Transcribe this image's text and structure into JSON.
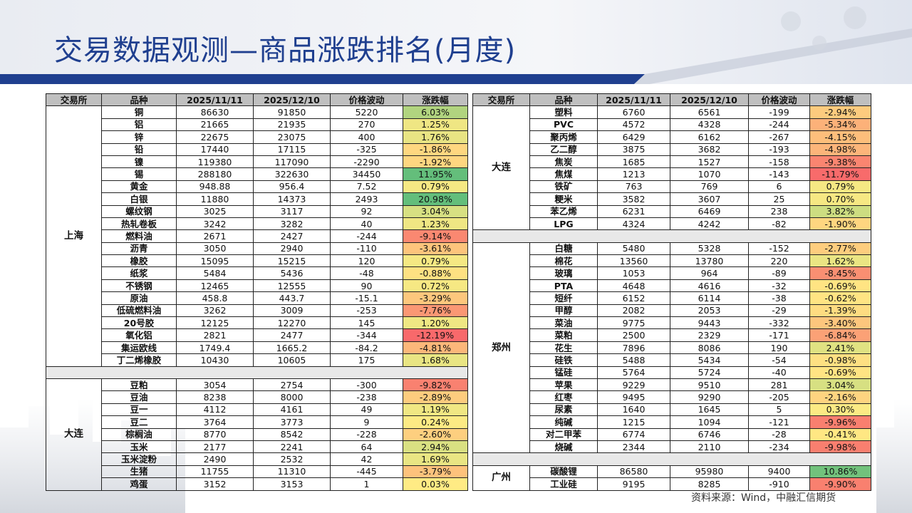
{
  "title": "交易数据观测—商品涨跌排名(月度)",
  "source": "资料来源：Wind，中融汇信期货",
  "colors": {
    "title": "#1f3f8f",
    "up": "#63be7b",
    "down": "#f8696b",
    "header": "#bfbfbf"
  },
  "headers": [
    "交易所",
    "品种",
    "2025/11/11",
    "2025/12/10",
    "价格波动",
    "涨跌幅"
  ],
  "left": {
    "groups": [
      {
        "exchange": "上海",
        "rows": [
          {
            "name": "铜",
            "p1": "86630",
            "p2": "91850",
            "diff": "5220",
            "chg": "6.03%",
            "v": 6.03
          },
          {
            "name": "铝",
            "p1": "21665",
            "p2": "21935",
            "diff": "270",
            "chg": "1.25%",
            "v": 1.25
          },
          {
            "name": "锌",
            "p1": "22675",
            "p2": "23075",
            "diff": "400",
            "chg": "1.76%",
            "v": 1.76
          },
          {
            "name": "铅",
            "p1": "17440",
            "p2": "17115",
            "diff": "-325",
            "chg": "-1.86%",
            "v": -1.86
          },
          {
            "name": "镍",
            "p1": "119380",
            "p2": "117090",
            "diff": "-2290",
            "chg": "-1.92%",
            "v": -1.92
          },
          {
            "name": "锡",
            "p1": "288180",
            "p2": "322630",
            "diff": "34450",
            "chg": "11.95%",
            "v": 11.95
          },
          {
            "name": "黄金",
            "p1": "948.88",
            "p2": "956.4",
            "diff": "7.52",
            "chg": "0.79%",
            "v": 0.79
          },
          {
            "name": "白银",
            "p1": "11880",
            "p2": "14373",
            "diff": "2493",
            "chg": "20.98%",
            "v": 20.98
          },
          {
            "name": "螺纹钢",
            "p1": "3025",
            "p2": "3117",
            "diff": "92",
            "chg": "3.04%",
            "v": 3.04
          },
          {
            "name": "热轧卷板",
            "p1": "3242",
            "p2": "3282",
            "diff": "40",
            "chg": "1.23%",
            "v": 1.23
          },
          {
            "name": "燃料油",
            "p1": "2671",
            "p2": "2427",
            "diff": "-244",
            "chg": "-9.14%",
            "v": -9.14
          },
          {
            "name": "沥青",
            "p1": "3050",
            "p2": "2940",
            "diff": "-110",
            "chg": "-3.61%",
            "v": -3.61
          },
          {
            "name": "橡胶",
            "p1": "15095",
            "p2": "15215",
            "diff": "120",
            "chg": "0.79%",
            "v": 0.79
          },
          {
            "name": "纸浆",
            "p1": "5484",
            "p2": "5436",
            "diff": "-48",
            "chg": "-0.88%",
            "v": -0.88
          },
          {
            "name": "不锈钢",
            "p1": "12465",
            "p2": "12555",
            "diff": "90",
            "chg": "0.72%",
            "v": 0.72
          },
          {
            "name": "原油",
            "p1": "458.8",
            "p2": "443.7",
            "diff": "-15.1",
            "chg": "-3.29%",
            "v": -3.29
          },
          {
            "name": "低硫燃料油",
            "p1": "3262",
            "p2": "3009",
            "diff": "-253",
            "chg": "-7.76%",
            "v": -7.76
          },
          {
            "name": "20号胶",
            "p1": "12125",
            "p2": "12270",
            "diff": "145",
            "chg": "1.20%",
            "v": 1.2
          },
          {
            "name": "氧化铝",
            "p1": "2821",
            "p2": "2477",
            "diff": "-344",
            "chg": "-12.19%",
            "v": -12.19
          },
          {
            "name": "集运欧线",
            "p1": "1749.4",
            "p2": "1665.2",
            "diff": "-84.2",
            "chg": "-4.81%",
            "v": -4.81
          },
          {
            "name": "丁二烯橡胶",
            "p1": "10430",
            "p2": "10605",
            "diff": "175",
            "chg": "1.68%",
            "v": 1.68
          }
        ]
      },
      {
        "exchange": "大连",
        "rows": [
          {
            "name": "豆粕",
            "p1": "3054",
            "p2": "2754",
            "diff": "-300",
            "chg": "-9.82%",
            "v": -9.82
          },
          {
            "name": "豆油",
            "p1": "8238",
            "p2": "8000",
            "diff": "-238",
            "chg": "-2.89%",
            "v": -2.89
          },
          {
            "name": "豆一",
            "p1": "4112",
            "p2": "4161",
            "diff": "49",
            "chg": "1.19%",
            "v": 1.19
          },
          {
            "name": "豆二",
            "p1": "3764",
            "p2": "3773",
            "diff": "9",
            "chg": "0.24%",
            "v": 0.24
          },
          {
            "name": "棕榈油",
            "p1": "8770",
            "p2": "8542",
            "diff": "-228",
            "chg": "-2.60%",
            "v": -2.6
          },
          {
            "name": "玉米",
            "p1": "2177",
            "p2": "2241",
            "diff": "64",
            "chg": "2.94%",
            "v": 2.94
          },
          {
            "name": "玉米淀粉",
            "p1": "2490",
            "p2": "2532",
            "diff": "42",
            "chg": "1.69%",
            "v": 1.69
          },
          {
            "name": "生猪",
            "p1": "11755",
            "p2": "11310",
            "diff": "-445",
            "chg": "-3.79%",
            "v": -3.79
          },
          {
            "name": "鸡蛋",
            "p1": "3152",
            "p2": "3153",
            "diff": "1",
            "chg": "0.03%",
            "v": 0.03
          }
        ]
      }
    ]
  },
  "right": {
    "groups": [
      {
        "exchange": "大连",
        "rows": [
          {
            "name": "塑料",
            "p1": "6760",
            "p2": "6561",
            "diff": "-199",
            "chg": "-2.94%",
            "v": -2.94
          },
          {
            "name": "PVC",
            "p1": "4572",
            "p2": "4328",
            "diff": "-244",
            "chg": "-5.34%",
            "v": -5.34
          },
          {
            "name": "聚丙烯",
            "p1": "6429",
            "p2": "6162",
            "diff": "-267",
            "chg": "-4.15%",
            "v": -4.15
          },
          {
            "name": "乙二醇",
            "p1": "3875",
            "p2": "3682",
            "diff": "-193",
            "chg": "-4.98%",
            "v": -4.98
          },
          {
            "name": "焦炭",
            "p1": "1685",
            "p2": "1527",
            "diff": "-158",
            "chg": "-9.38%",
            "v": -9.38
          },
          {
            "name": "焦煤",
            "p1": "1213",
            "p2": "1070",
            "diff": "-143",
            "chg": "-11.79%",
            "v": -11.79
          },
          {
            "name": "铁矿",
            "p1": "763",
            "p2": "769",
            "diff": "6",
            "chg": "0.79%",
            "v": 0.79
          },
          {
            "name": "粳米",
            "p1": "3582",
            "p2": "3607",
            "diff": "25",
            "chg": "0.70%",
            "v": 0.7
          },
          {
            "name": "苯乙烯",
            "p1": "6231",
            "p2": "6469",
            "diff": "238",
            "chg": "3.82%",
            "v": 3.82
          },
          {
            "name": "LPG",
            "p1": "4324",
            "p2": "4242",
            "diff": "-82",
            "chg": "-1.90%",
            "v": -1.9
          }
        ]
      },
      {
        "exchange": "郑州",
        "rows": [
          {
            "name": "白糖",
            "p1": "5480",
            "p2": "5328",
            "diff": "-152",
            "chg": "-2.77%",
            "v": -2.77
          },
          {
            "name": "棉花",
            "p1": "13560",
            "p2": "13780",
            "diff": "220",
            "chg": "1.62%",
            "v": 1.62
          },
          {
            "name": "玻璃",
            "p1": "1053",
            "p2": "964",
            "diff": "-89",
            "chg": "-8.45%",
            "v": -8.45
          },
          {
            "name": "PTA",
            "p1": "4648",
            "p2": "4616",
            "diff": "-32",
            "chg": "-0.69%",
            "v": -0.69
          },
          {
            "name": "短纤",
            "p1": "6152",
            "p2": "6114",
            "diff": "-38",
            "chg": "-0.62%",
            "v": -0.62
          },
          {
            "name": "甲醇",
            "p1": "2082",
            "p2": "2053",
            "diff": "-29",
            "chg": "-1.39%",
            "v": -1.39
          },
          {
            "name": "菜油",
            "p1": "9775",
            "p2": "9443",
            "diff": "-332",
            "chg": "-3.40%",
            "v": -3.4
          },
          {
            "name": "菜粕",
            "p1": "2500",
            "p2": "2329",
            "diff": "-171",
            "chg": "-6.84%",
            "v": -6.84
          },
          {
            "name": "花生",
            "p1": "7896",
            "p2": "8086",
            "diff": "190",
            "chg": "2.41%",
            "v": 2.41
          },
          {
            "name": "硅铁",
            "p1": "5488",
            "p2": "5434",
            "diff": "-54",
            "chg": "-0.98%",
            "v": -0.98
          },
          {
            "name": "锰硅",
            "p1": "5764",
            "p2": "5724",
            "diff": "-40",
            "chg": "-0.69%",
            "v": -0.69
          },
          {
            "name": "苹果",
            "p1": "9229",
            "p2": "9510",
            "diff": "281",
            "chg": "3.04%",
            "v": 3.04
          },
          {
            "name": "红枣",
            "p1": "9495",
            "p2": "9290",
            "diff": "-205",
            "chg": "-2.16%",
            "v": -2.16
          },
          {
            "name": "尿素",
            "p1": "1640",
            "p2": "1645",
            "diff": "5",
            "chg": "0.30%",
            "v": 0.3
          },
          {
            "name": "纯碱",
            "p1": "1215",
            "p2": "1094",
            "diff": "-121",
            "chg": "-9.96%",
            "v": -9.96
          },
          {
            "name": "对二甲苯",
            "p1": "6774",
            "p2": "6746",
            "diff": "-28",
            "chg": "-0.41%",
            "v": -0.41
          },
          {
            "name": "烧碱",
            "p1": "2344",
            "p2": "2110",
            "diff": "-234",
            "chg": "-9.98%",
            "v": -9.98
          }
        ]
      },
      {
        "exchange": "广州",
        "rows": [
          {
            "name": "碳酸锂",
            "p1": "86580",
            "p2": "95980",
            "diff": "9400",
            "chg": "10.86%",
            "v": 10.86
          },
          {
            "name": "工业硅",
            "p1": "9195",
            "p2": "8285",
            "diff": "-910",
            "chg": "-9.90%",
            "v": -9.9
          }
        ]
      }
    ]
  }
}
